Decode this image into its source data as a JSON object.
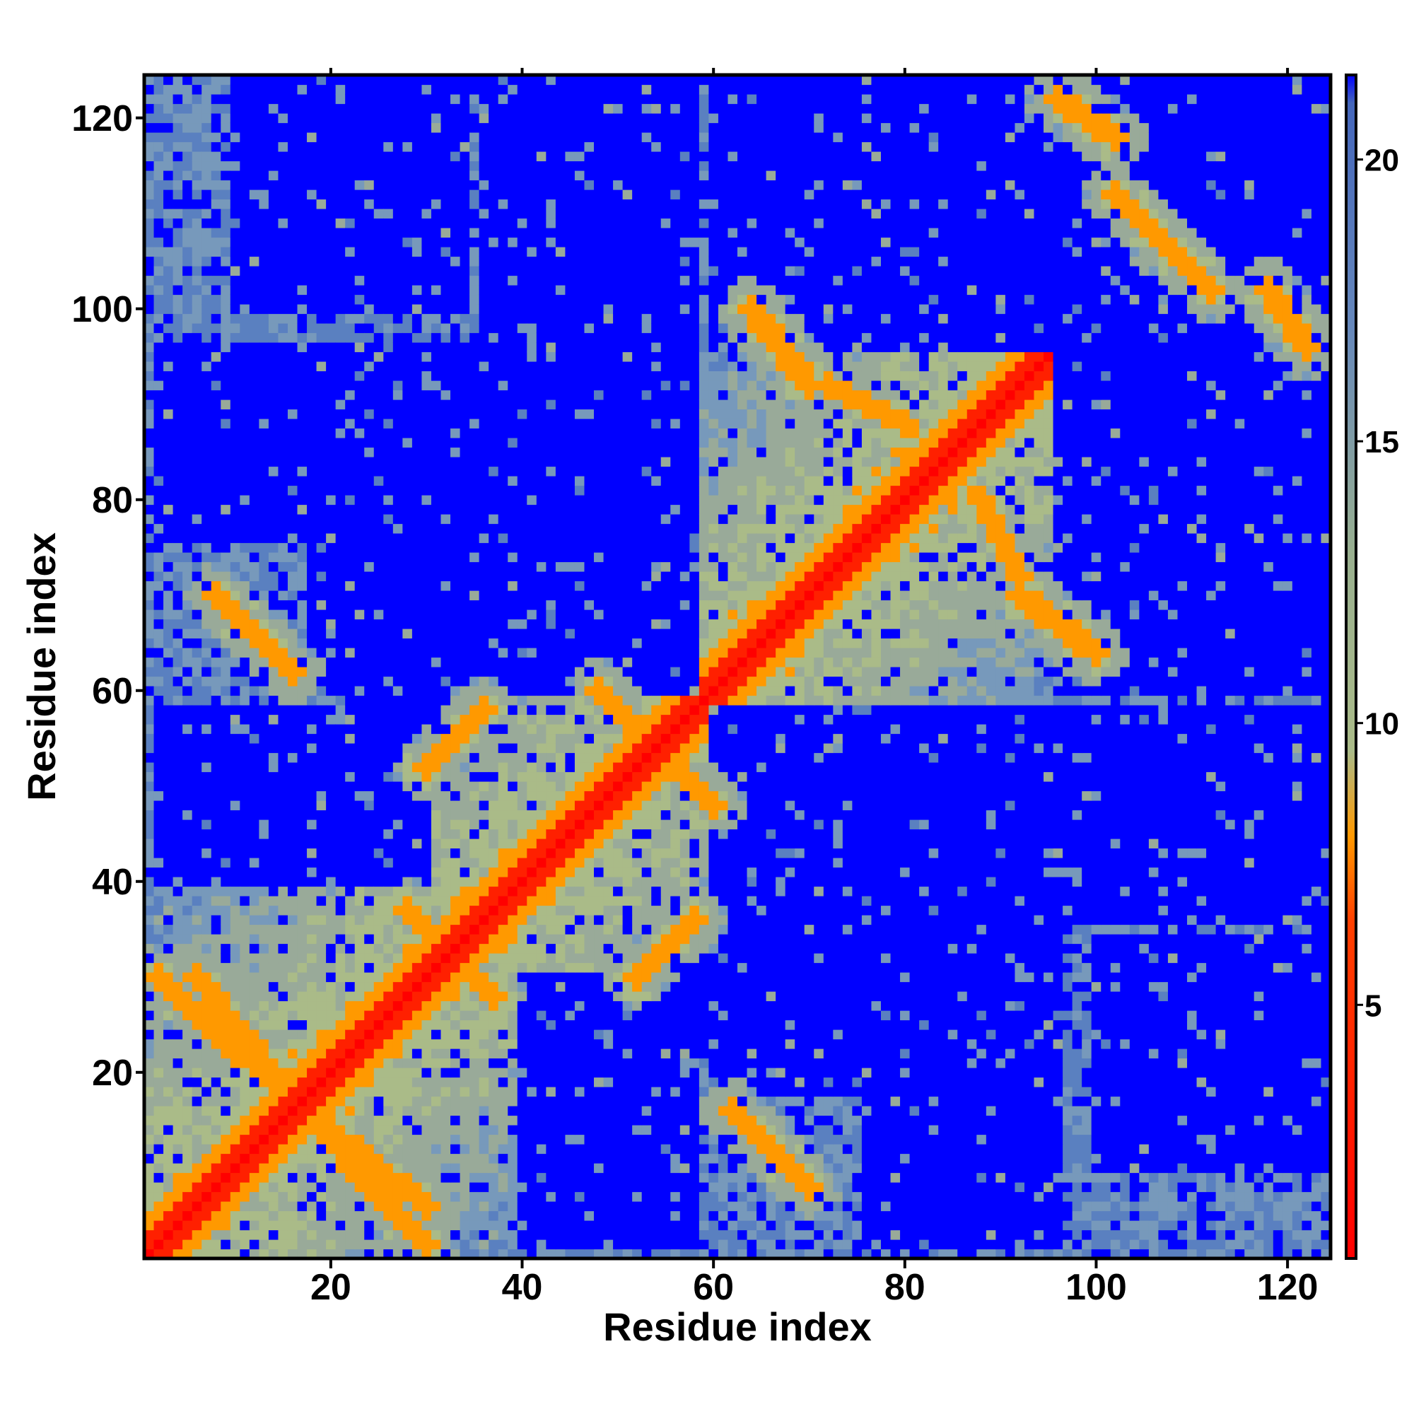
{
  "chart_data": {
    "type": "heatmap",
    "title": "",
    "xlabel": "Residue index",
    "ylabel": "Residue index",
    "n_residues": 124,
    "xlim": [
      1,
      124
    ],
    "ylim": [
      1,
      124
    ],
    "x_ticks": [
      20,
      40,
      60,
      80,
      100,
      120
    ],
    "y_ticks": [
      20,
      40,
      60,
      80,
      100,
      120
    ],
    "x_tick_labels": [
      "20",
      "40",
      "60",
      "80",
      "100",
      "120"
    ],
    "y_tick_labels": [
      "20",
      "40",
      "60",
      "80",
      "100",
      "120"
    ],
    "colorbar": {
      "range": [
        0.5,
        21.5
      ],
      "ticks": [
        5,
        10,
        15,
        20
      ],
      "tick_labels": [
        "5",
        "10",
        "15",
        "20"
      ],
      "stops": [
        {
          "value": 0.5,
          "color": "#ff0000"
        },
        {
          "value": 6.5,
          "color": "#ff4000"
        },
        {
          "value": 8.0,
          "color": "#ff9900"
        },
        {
          "value": 9.5,
          "color": "#aabb88"
        },
        {
          "value": 13.0,
          "color": "#99b08f"
        },
        {
          "value": 17.0,
          "color": "#6688bb"
        },
        {
          "value": 21.0,
          "color": "#4466bb"
        },
        {
          "value": 21.5,
          "color": "#0000ff"
        }
      ]
    },
    "values_description_type": "symmetric residue-residue distance map; diagonal ~0, off-diagonal blocks >20"
  }
}
